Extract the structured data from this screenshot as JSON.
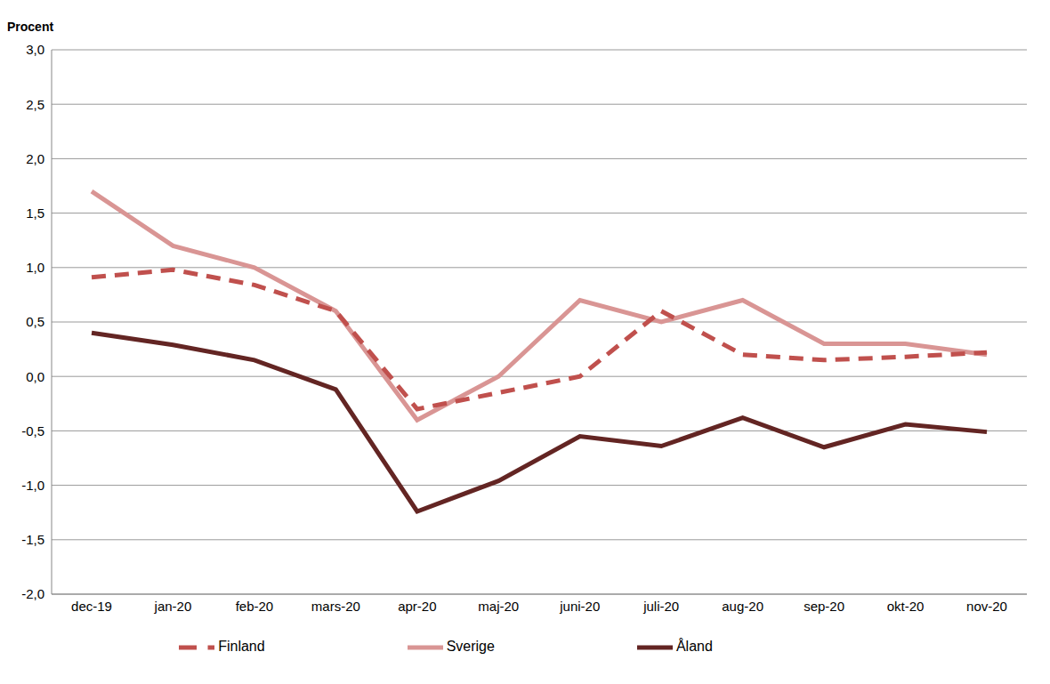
{
  "chart_data": {
    "type": "line",
    "y_label": "Procent",
    "categories": [
      "dec-19",
      "jan-20",
      "feb-20",
      "mars-20",
      "apr-20",
      "maj-20",
      "juni-20",
      "juli-20",
      "aug-20",
      "sep-20",
      "okt-20",
      "nov-20"
    ],
    "series": [
      {
        "name": "Sverige",
        "color": "#d99594",
        "line_style": "solid",
        "values": [
          1.7,
          1.2,
          1.0,
          0.6,
          -0.4,
          0.0,
          0.7,
          0.5,
          0.7,
          0.3,
          0.3,
          0.2
        ]
      },
      {
        "name": "Finland",
        "color": "#c0504d",
        "line_style": "dashed",
        "values": [
          0.91,
          0.98,
          0.84,
          0.6,
          -0.3,
          -0.15,
          0.0,
          0.6,
          0.2,
          0.15,
          0.18,
          0.22
        ]
      },
      {
        "name": "Åland",
        "color": "#632523",
        "line_style": "solid",
        "values": [
          0.4,
          0.29,
          0.15,
          -0.12,
          -1.24,
          -0.96,
          -0.55,
          -0.64,
          -0.38,
          -0.65,
          -0.44,
          -0.51
        ]
      }
    ],
    "ylim": [
      -2.0,
      3.0
    ],
    "yticks": [
      {
        "value": -2.0,
        "label": "-2,0"
      },
      {
        "value": -1.5,
        "label": "-1,5"
      },
      {
        "value": -1.0,
        "label": "-1,0"
      },
      {
        "value": -0.5,
        "label": "-0,5"
      },
      {
        "value": 0.0,
        "label": "0,0"
      },
      {
        "value": 0.5,
        "label": "0,5"
      },
      {
        "value": 1.0,
        "label": "1,0"
      },
      {
        "value": 1.5,
        "label": "1,5"
      },
      {
        "value": 2.0,
        "label": "2,0"
      },
      {
        "value": 2.5,
        "label": "2,5"
      },
      {
        "value": 3.0,
        "label": "3,0"
      }
    ],
    "grid": true,
    "legend": "bottom"
  }
}
